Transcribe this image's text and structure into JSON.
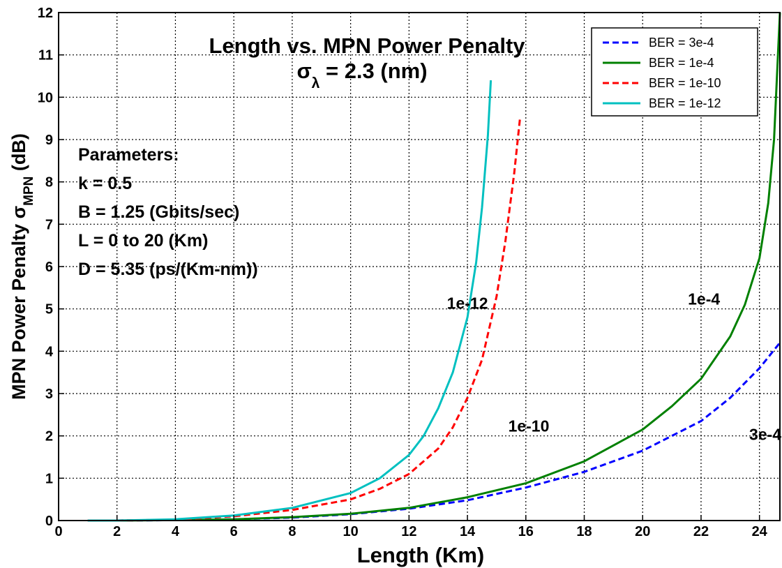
{
  "chart_data": {
    "type": "line",
    "title": "Length vs. MPN Power Penalty",
    "subtitle": {
      "sym": "σ",
      "sub": "λ",
      "rest": " = 2.3 (nm)"
    },
    "xlabel": "Length (Km)",
    "ylabel": {
      "text": "MPN Power Penalty ",
      "sym": "σ",
      "sub": "MPN",
      "unit": " (dB)"
    },
    "xlim": [
      0,
      24.7
    ],
    "ylim": [
      0,
      12
    ],
    "xticks": [
      "0",
      "2",
      "4",
      "6",
      "8",
      "10",
      "12",
      "14",
      "16",
      "18",
      "20",
      "22",
      "24"
    ],
    "yticks": [
      "0",
      "1",
      "2",
      "3",
      "4",
      "5",
      "6",
      "7",
      "8",
      "9",
      "10",
      "11",
      "12"
    ],
    "grid": true,
    "legend_position": "top-right",
    "series": [
      {
        "name": "BER = 3e-4",
        "color": "#0000ff",
        "dash": "dashed",
        "x": [
          1,
          2,
          4,
          6,
          8,
          10,
          12,
          14,
          16,
          18,
          20,
          22,
          23,
          24,
          24.7
        ],
        "y": [
          0.0,
          0.0,
          0.01,
          0.03,
          0.07,
          0.15,
          0.28,
          0.48,
          0.78,
          1.15,
          1.65,
          2.35,
          2.9,
          3.6,
          4.2
        ]
      },
      {
        "name": "BER = 1e-4",
        "color": "#008000",
        "dash": "solid",
        "x": [
          1,
          2,
          4,
          6,
          8,
          10,
          12,
          14,
          16,
          18,
          20,
          21,
          22,
          23,
          23.5,
          24,
          24.3,
          24.5,
          24.7
        ],
        "y": [
          0.0,
          0.0,
          0.01,
          0.03,
          0.08,
          0.16,
          0.3,
          0.55,
          0.88,
          1.4,
          2.15,
          2.7,
          3.35,
          4.35,
          5.1,
          6.2,
          7.5,
          9.0,
          12.0
        ]
      },
      {
        "name": "BER = 1e-10",
        "color": "#ff0000",
        "dash": "dashed",
        "x": [
          1,
          2,
          4,
          6,
          8,
          10,
          11,
          12,
          13,
          13.5,
          14,
          14.5,
          15,
          15.3,
          15.6,
          15.8
        ],
        "y": [
          0.0,
          0.0,
          0.02,
          0.1,
          0.25,
          0.5,
          0.75,
          1.1,
          1.7,
          2.2,
          2.9,
          3.8,
          5.3,
          6.6,
          8.2,
          9.5
        ]
      },
      {
        "name": "BER = 1e-12",
        "color": "#00c0c0",
        "dash": "solid",
        "x": [
          1,
          2,
          4,
          6,
          8,
          10,
          11,
          12,
          12.5,
          13,
          13.5,
          14,
          14.3,
          14.5,
          14.7,
          14.8
        ],
        "y": [
          0.0,
          0.0,
          0.03,
          0.12,
          0.3,
          0.65,
          1.0,
          1.55,
          2.0,
          2.65,
          3.5,
          4.8,
          6.1,
          7.4,
          9.1,
          10.4
        ]
      }
    ],
    "annotations": [
      {
        "text": "1e-12",
        "x": 14.0,
        "y": 5.0
      },
      {
        "text": "1e-10",
        "x": 16.1,
        "y": 2.1
      },
      {
        "text": "1e-4",
        "x": 22.1,
        "y": 5.1
      },
      {
        "text": "3e-4",
        "x": 24.2,
        "y": 1.9
      }
    ],
    "parameters": [
      "Parameters:",
      "k = 0.5",
      "B = 1.25 (Gbits/sec)",
      "L = 0 to 20 (Km)",
      "D = 5.35 (ps/(Km-nm))"
    ]
  }
}
